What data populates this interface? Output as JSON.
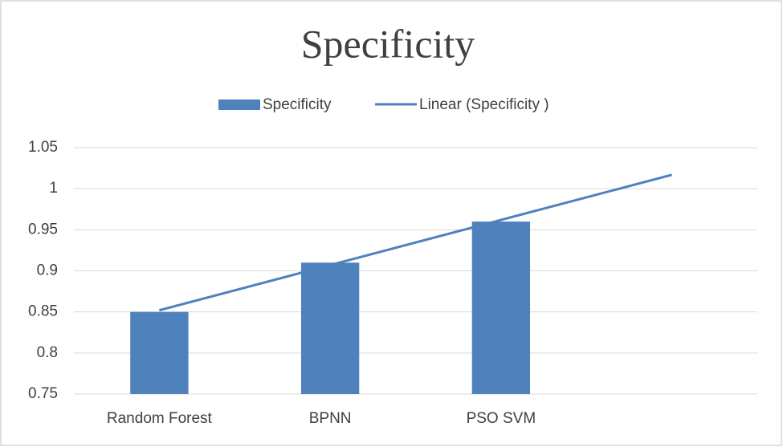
{
  "chart_data": {
    "type": "bar",
    "title": "Specificity",
    "categories": [
      "Random Forest",
      "BPNN",
      "PSO SVM",
      null
    ],
    "series": [
      {
        "name": "Specificity",
        "color": "#4f81bd",
        "values": [
          0.85,
          0.91,
          0.96,
          null
        ]
      },
      {
        "name": "Linear (Specificity )",
        "color": "#4f81bd",
        "type": "line",
        "values": [
          0.852,
          0.907,
          0.962,
          1.017
        ]
      }
    ],
    "ylim": [
      0.75,
      1.05
    ],
    "yticks": [
      0.75,
      0.8,
      0.85,
      0.9,
      0.95,
      1,
      1.05
    ],
    "grid": true,
    "legend": "top"
  }
}
